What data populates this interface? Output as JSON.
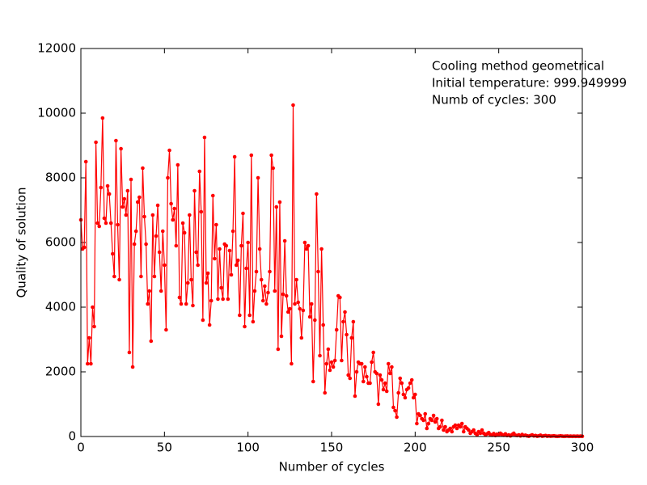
{
  "chart_data": {
    "type": "line",
    "xlabel": "Number of cycles",
    "ylabel": "Quality of solution",
    "annotations": [
      "Cooling method geometrical",
      "Initial temperature: 999.949999",
      "Numb of cycles: 300"
    ],
    "xlim": [
      0,
      300
    ],
    "xticks": [
      0,
      50,
      100,
      150,
      200,
      250,
      300
    ],
    "ylim": [
      0,
      12000
    ],
    "yticks": [
      0,
      2000,
      4000,
      6000,
      8000,
      10000,
      12000
    ],
    "grid": false,
    "x": [
      0,
      1,
      2,
      3,
      4,
      5,
      6,
      7,
      8,
      9,
      10,
      11,
      12,
      13,
      14,
      15,
      16,
      17,
      18,
      19,
      20,
      21,
      22,
      23,
      24,
      25,
      26,
      27,
      28,
      29,
      30,
      31,
      32,
      33,
      34,
      35,
      36,
      37,
      38,
      39,
      40,
      41,
      42,
      43,
      44,
      45,
      46,
      47,
      48,
      49,
      50,
      51,
      52,
      53,
      54,
      55,
      56,
      57,
      58,
      59,
      60,
      61,
      62,
      63,
      64,
      65,
      66,
      67,
      68,
      69,
      70,
      71,
      72,
      73,
      74,
      75,
      76,
      77,
      78,
      79,
      80,
      81,
      82,
      83,
      84,
      85,
      86,
      87,
      88,
      89,
      90,
      91,
      92,
      93,
      94,
      95,
      96,
      97,
      98,
      99,
      100,
      101,
      102,
      103,
      104,
      105,
      106,
      107,
      108,
      109,
      110,
      111,
      112,
      113,
      114,
      115,
      116,
      117,
      118,
      119,
      120,
      121,
      122,
      123,
      124,
      125,
      126,
      127,
      128,
      129,
      130,
      131,
      132,
      133,
      134,
      135,
      136,
      137,
      138,
      139,
      140,
      141,
      142,
      143,
      144,
      145,
      146,
      147,
      148,
      149,
      150,
      151,
      152,
      153,
      154,
      155,
      156,
      157,
      158,
      159,
      160,
      161,
      162,
      163,
      164,
      165,
      166,
      167,
      168,
      169,
      170,
      171,
      172,
      173,
      174,
      175,
      176,
      177,
      178,
      179,
      180,
      181,
      182,
      183,
      184,
      185,
      186,
      187,
      188,
      189,
      190,
      191,
      192,
      193,
      194,
      195,
      196,
      197,
      198,
      199,
      200,
      201,
      202,
      203,
      204,
      205,
      206,
      207,
      208,
      209,
      210,
      211,
      212,
      213,
      214,
      215,
      216,
      217,
      218,
      219,
      220,
      221,
      222,
      223,
      224,
      225,
      226,
      227,
      228,
      229,
      230,
      231,
      232,
      233,
      234,
      235,
      236,
      237,
      238,
      239,
      240,
      241,
      242,
      243,
      244,
      245,
      246,
      247,
      248,
      249,
      250,
      251,
      252,
      253,
      254,
      255,
      256,
      257,
      258,
      259,
      260,
      261,
      262,
      263,
      264,
      265,
      266,
      267,
      268,
      269,
      270,
      271,
      272,
      273,
      274,
      275,
      276,
      277,
      278,
      279,
      280,
      281,
      282,
      283,
      284,
      285,
      286,
      287,
      288,
      289,
      290,
      291,
      292,
      293,
      294,
      295,
      296,
      297,
      298,
      299,
      300
    ],
    "series": [
      {
        "color": "#ff0000",
        "values": [
          6700,
          5800,
          5850,
          8500,
          2250,
          3050,
          2250,
          4000,
          3400,
          9100,
          6600,
          6500,
          7700,
          9850,
          6750,
          6600,
          7750,
          7500,
          6600,
          5650,
          4950,
          9150,
          6550,
          4850,
          8900,
          7100,
          7350,
          6850,
          7600,
          2600,
          7950,
          2150,
          5950,
          6350,
          7250,
          7400,
          4950,
          8300,
          6800,
          5950,
          4100,
          4500,
          2950,
          6850,
          4950,
          6200,
          7150,
          5700,
          4500,
          6350,
          5300,
          3300,
          8000,
          8850,
          7200,
          6700,
          7050,
          5900,
          8400,
          4300,
          4100,
          6600,
          6300,
          4100,
          4750,
          6850,
          4850,
          4050,
          7600,
          5700,
          5300,
          8200,
          6950,
          3600,
          9250,
          4750,
          5050,
          3450,
          4200,
          7450,
          5500,
          6550,
          4250,
          5800,
          4600,
          4250,
          5950,
          5900,
          4250,
          5750,
          5000,
          6350,
          8650,
          5300,
          5450,
          3750,
          5900,
          6900,
          3400,
          5200,
          6000,
          3750,
          8700,
          3550,
          4500,
          5100,
          8000,
          5800,
          4850,
          4200,
          4650,
          4100,
          4450,
          5100,
          8700,
          8300,
          4500,
          7100,
          2700,
          7250,
          3100,
          4400,
          6050,
          4350,
          3850,
          3950,
          2250,
          10250,
          4100,
          4850,
          4150,
          3950,
          3050,
          3900,
          6000,
          5800,
          5900,
          3700,
          4100,
          1700,
          3600,
          7500,
          5100,
          2500,
          5800,
          3450,
          1350,
          2250,
          2700,
          2050,
          2300,
          2150,
          2350,
          3300,
          4350,
          4300,
          2350,
          3550,
          3850,
          3150,
          1900,
          1800,
          3050,
          3550,
          1250,
          2000,
          2300,
          2250,
          2250,
          1700,
          2150,
          1850,
          1650,
          1650,
          2300,
          2600,
          2000,
          1950,
          1000,
          1900,
          1750,
          1450,
          1650,
          1400,
          2250,
          1950,
          2150,
          900,
          800,
          600,
          1350,
          1800,
          1650,
          1300,
          1200,
          1450,
          1500,
          1650,
          1750,
          1200,
          1300,
          400,
          700,
          650,
          550,
          500,
          700,
          250,
          400,
          550,
          500,
          650,
          450,
          550,
          250,
          300,
          500,
          200,
          300,
          150,
          200,
          250,
          150,
          300,
          350,
          250,
          350,
          300,
          400,
          150,
          300,
          250,
          200,
          100,
          150,
          200,
          100,
          50,
          150,
          100,
          200,
          100,
          50,
          80,
          120,
          60,
          40,
          90,
          30,
          70,
          50,
          100,
          60,
          40,
          80,
          30,
          50,
          20,
          60,
          100,
          40,
          30,
          50,
          20,
          60,
          30,
          40,
          20,
          10,
          30,
          50,
          20,
          30,
          10,
          20,
          40,
          10,
          20,
          30,
          10,
          20,
          10,
          15,
          20,
          10,
          5,
          10,
          20,
          10,
          5,
          10,
          15,
          5,
          10,
          5,
          10,
          5,
          10,
          5,
          10,
          5
        ]
      }
    ]
  }
}
